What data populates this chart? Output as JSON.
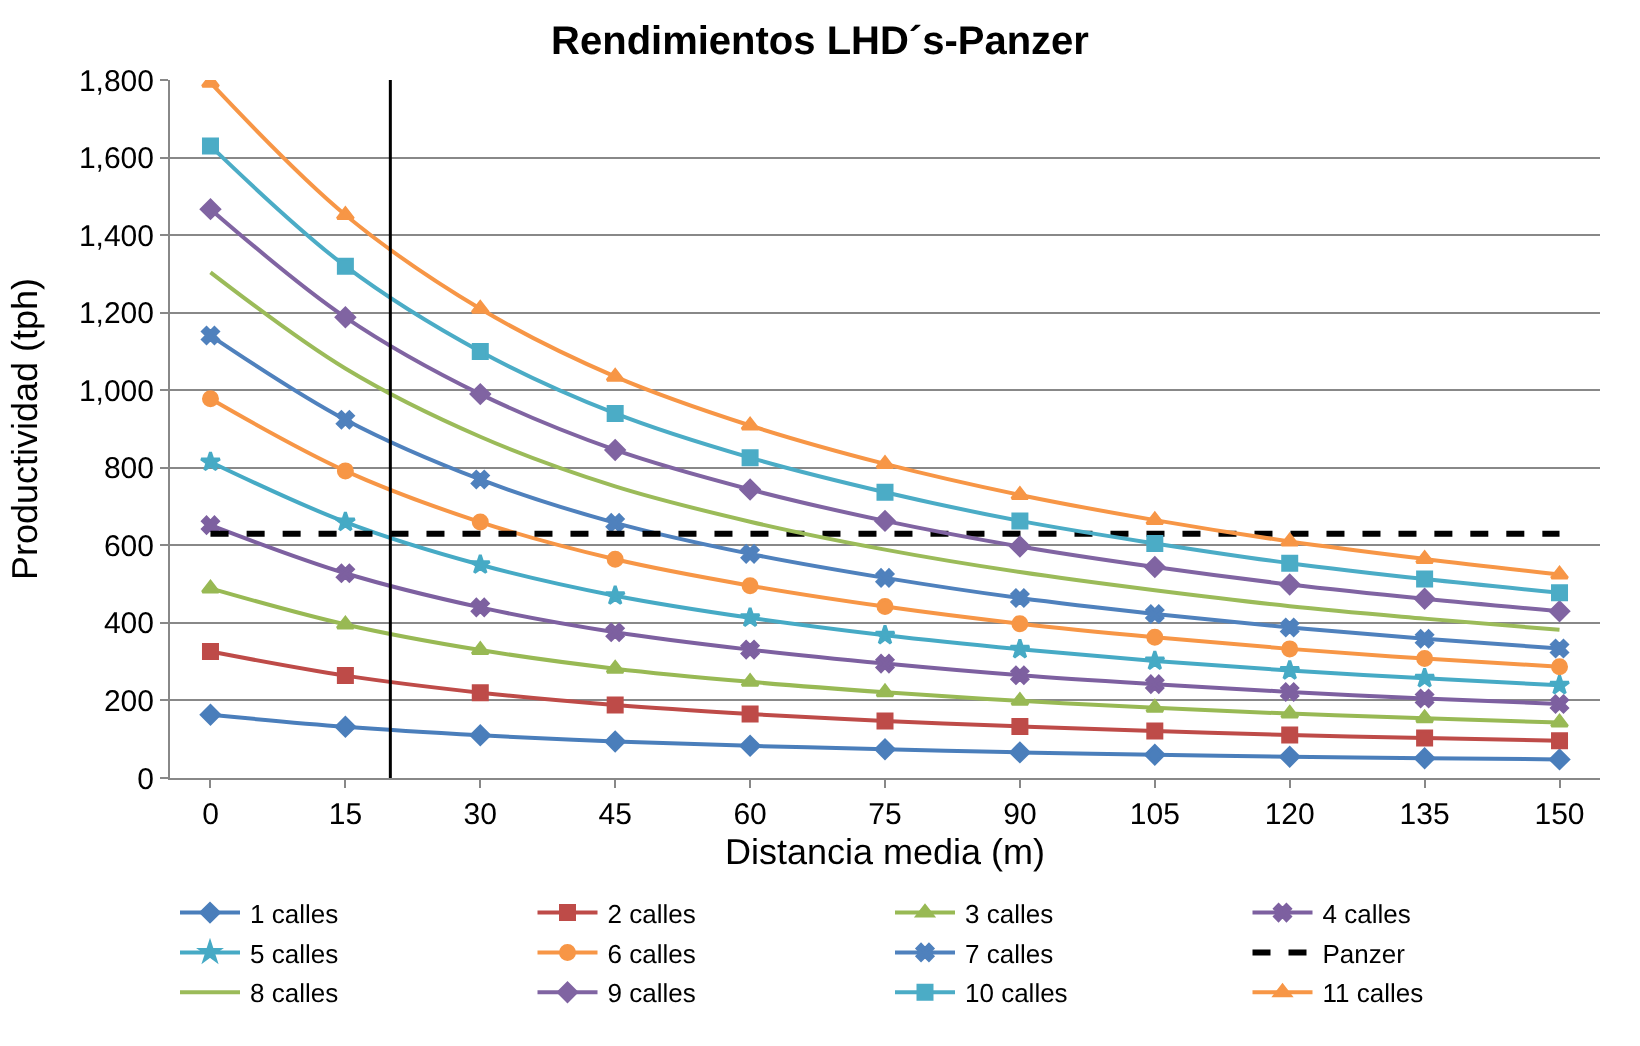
{
  "chart_data": {
    "type": "line",
    "title": "Rendimientos LHD´s-Panzer",
    "xlabel": "Distancia media (m)",
    "ylabel": "Productividad (tph)",
    "x": [
      0,
      15,
      30,
      45,
      60,
      75,
      90,
      105,
      120,
      135,
      150
    ],
    "xlim": [
      -4.5,
      154.5
    ],
    "xticks": [
      0,
      15,
      30,
      45,
      60,
      75,
      90,
      105,
      120,
      135,
      150
    ],
    "ylim": [
      0,
      1800
    ],
    "yticks": [
      {
        "value": 0,
        "label": "0"
      },
      {
        "value": 200,
        "label": "200"
      },
      {
        "value": 400,
        "label": "400"
      },
      {
        "value": 600,
        "label": "600"
      },
      {
        "value": 800,
        "label": "800"
      },
      {
        "value": 1000,
        "label": "1,000"
      },
      {
        "value": 1200,
        "label": "1,200"
      },
      {
        "value": 1400,
        "label": "1,400"
      },
      {
        "value": 1600,
        "label": "1,600"
      },
      {
        "value": 1800,
        "label": "1,800"
      }
    ],
    "grid": "y",
    "legend": "bottom",
    "ref_lines": [
      {
        "axis": "x",
        "value": 20,
        "color": "#000000"
      }
    ],
    "series": [
      {
        "name": "1 calles",
        "color": "#4a7ebb",
        "marker": "diamond",
        "values": [
          163,
          132,
          110,
          94,
          83,
          74,
          66,
          60,
          55,
          51,
          48
        ]
      },
      {
        "name": "2 calles",
        "color": "#be4b48",
        "marker": "square",
        "values": [
          326,
          264,
          220,
          188,
          165,
          147,
          133,
          121,
          111,
          103,
          96
        ]
      },
      {
        "name": "3 calles",
        "color": "#98b954",
        "marker": "triangle",
        "values": [
          489,
          396,
          330,
          282,
          248,
          221,
          199,
          181,
          166,
          154,
          143
        ]
      },
      {
        "name": "4 calles",
        "color": "#7d60a0",
        "marker": "cross",
        "values": [
          652,
          528,
          440,
          376,
          331,
          295,
          265,
          242,
          222,
          205,
          191
        ]
      },
      {
        "name": "5 calles",
        "color": "#46aac5",
        "marker": "star",
        "values": [
          815,
          660,
          550,
          470,
          413,
          368,
          332,
          302,
          277,
          257,
          239
        ]
      },
      {
        "name": "6 calles",
        "color": "#f79646",
        "marker": "circle",
        "values": [
          978,
          792,
          660,
          564,
          496,
          442,
          398,
          363,
          333,
          308,
          287
        ]
      },
      {
        "name": "7 calles",
        "color": "#4f81bd",
        "marker": "cross",
        "values": [
          1141,
          924,
          770,
          658,
          578,
          516,
          464,
          423,
          388,
          359,
          334
        ]
      },
      {
        "name": "Panzer",
        "color": "#000000",
        "marker": "none",
        "line_style": "dashed",
        "values": [
          630,
          630,
          630,
          630,
          630,
          630,
          630,
          630,
          630,
          630,
          630
        ]
      },
      {
        "name": "8 calles",
        "color": "#9bbb59",
        "marker": "none",
        "values": [
          1304,
          1056,
          880,
          752,
          661,
          589,
          531,
          484,
          443,
          411,
          382
        ]
      },
      {
        "name": "9 calles",
        "color": "#8064a2",
        "marker": "diamond",
        "values": [
          1467,
          1188,
          990,
          846,
          744,
          663,
          597,
          544,
          499,
          462,
          430
        ]
      },
      {
        "name": "10 calles",
        "color": "#4bacc6",
        "marker": "square",
        "values": [
          1630,
          1320,
          1100,
          940,
          826,
          737,
          663,
          605,
          554,
          513,
          478
        ]
      },
      {
        "name": "11 calles",
        "color": "#f79646",
        "marker": "triangle",
        "values": [
          1793,
          1452,
          1210,
          1035,
          909,
          810,
          730,
          665,
          610,
          565,
          525
        ]
      }
    ]
  }
}
